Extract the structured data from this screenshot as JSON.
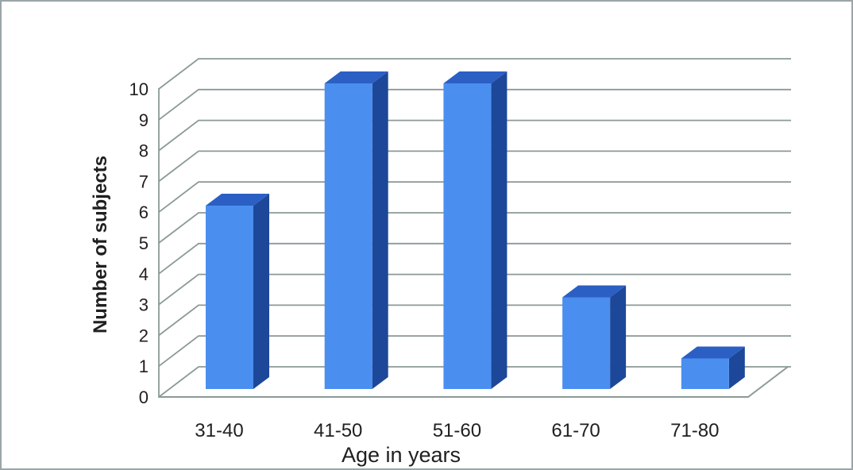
{
  "chart_data": {
    "type": "bar",
    "projection": "3d-column",
    "categories": [
      "31-40",
      "41-50",
      "51-60",
      "61-70",
      "71-80"
    ],
    "values": [
      6,
      10,
      10,
      3,
      1
    ],
    "xlabel": "Age in years",
    "ylabel": "Number of subjects",
    "ylim": [
      0,
      10
    ],
    "ytick_step": 1,
    "ytick_labels": [
      "0",
      "1",
      "2",
      "3",
      "4",
      "5",
      "6",
      "7",
      "8",
      "9",
      "10"
    ],
    "grid": true,
    "legend": "none",
    "colors": {
      "bar_front": "#4a8ff0",
      "bar_top": "#2b5fc4",
      "bar_side": "#1d4899",
      "gridline": "#8b9a97",
      "axis": "#8b9a97",
      "text": "#1f1f1f",
      "border": "#9aa5a8",
      "background": "#ffffff"
    }
  }
}
